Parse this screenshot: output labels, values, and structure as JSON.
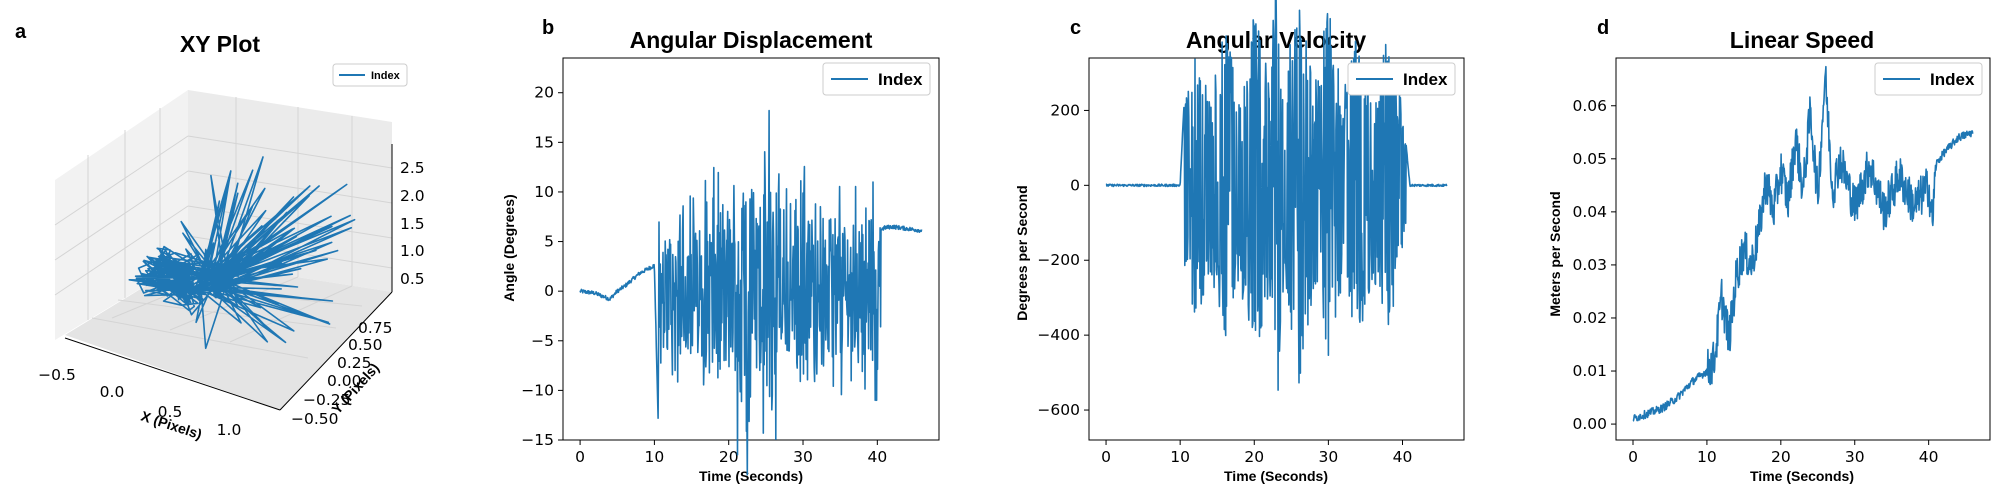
{
  "colors": {
    "series": "#1f77b4",
    "axis": "#000000",
    "pane": "#f2f2f2",
    "grid": "#d9d9d9"
  },
  "chart_data": [
    {
      "panel_label": "a",
      "type": "line",
      "projection": "3d",
      "title": "XY Plot",
      "xlabel": "X (Pixels)",
      "ylabel": "Y (Pixels)",
      "zlabel": "",
      "x_ticks": [
        "−0.5",
        "0.0",
        "0.5",
        "1.0"
      ],
      "y_ticks": [
        "−0.50",
        "−0.25",
        "0.00",
        "0.25",
        "0.50",
        "0.75"
      ],
      "z_ticks": [
        "0.5",
        "1.0",
        "1.5",
        "2.0",
        "2.5"
      ],
      "xlim": [
        -0.5,
        1.2
      ],
      "ylim": [
        -0.6,
        0.85
      ],
      "zlim": [
        0.3,
        2.7
      ],
      "legend": "top-right",
      "grid": true,
      "series": [
        {
          "name": "Index"
        }
      ]
    },
    {
      "panel_label": "b",
      "type": "line",
      "title": "Angular Displacement",
      "xlabel": "Time (Seconds)",
      "ylabel": "Angle (Degrees)",
      "xlim": [
        -2.3,
        48.3
      ],
      "ylim": [
        -15,
        23.5
      ],
      "x_ticks": [
        0,
        10,
        20,
        30,
        40
      ],
      "y_ticks": [
        -15,
        -10,
        -5,
        0,
        5,
        10,
        15,
        20
      ],
      "legend": "top-right",
      "grid": false,
      "series": [
        {
          "name": "Index",
          "x": [
            0,
            2,
            4,
            5,
            6,
            8,
            10,
            10.5,
            11,
            12,
            14,
            16,
            18,
            20,
            22,
            24,
            26,
            28,
            30,
            32,
            34,
            36,
            38,
            40,
            40.5,
            41,
            42,
            44,
            46
          ],
          "y": [
            0,
            -0.2,
            -0.8,
            0,
            0.5,
            1.8,
            2.6,
            -13,
            5,
            -8,
            10,
            -9,
            14,
            -10,
            21,
            -11,
            21,
            -9,
            13,
            -8,
            11,
            -10,
            11,
            -11,
            6.2,
            6.4,
            6.5,
            6.3,
            6.1
          ]
        }
      ]
    },
    {
      "panel_label": "c",
      "type": "line",
      "title": "Angular Velocity",
      "xlabel": "Time (Seconds)",
      "ylabel": "Degrees per Second",
      "xlim": [
        -2.3,
        48.3
      ],
      "ylim": [
        -680,
        340
      ],
      "x_ticks": [
        0,
        10,
        20,
        30,
        40
      ],
      "y_ticks": [
        -600,
        -400,
        -200,
        0,
        200
      ],
      "legend": "top-right",
      "grid": false,
      "series": [
        {
          "name": "Index",
          "x": [
            0,
            5,
            10,
            10.5,
            12,
            14,
            16,
            18,
            20,
            22,
            23,
            24,
            26,
            28,
            30,
            32,
            34,
            36,
            38,
            40,
            41,
            44,
            46
          ],
          "y": [
            0,
            0,
            0,
            210,
            -380,
            230,
            -420,
            260,
            -470,
            290,
            -640,
            270,
            -560,
            280,
            -480,
            250,
            -430,
            240,
            -400,
            210,
            0,
            0,
            0
          ]
        }
      ]
    },
    {
      "panel_label": "d",
      "type": "line",
      "title": "Linear Speed",
      "xlabel": "Time (Seconds)",
      "ylabel": "Meters per Second",
      "xlim": [
        -2.3,
        48.3
      ],
      "ylim": [
        -0.003,
        0.069
      ],
      "x_ticks": [
        0,
        10,
        20,
        30,
        40
      ],
      "y_ticks": [
        0.0,
        0.01,
        0.02,
        0.03,
        0.04,
        0.05,
        0.06
      ],
      "y_tick_labels": [
        "0.00",
        "0.01",
        "0.02",
        "0.03",
        "0.04",
        "0.05",
        "0.06"
      ],
      "legend": "top-right",
      "grid": false,
      "series": [
        {
          "name": "Index",
          "x": [
            0,
            2,
            4,
            6,
            8,
            10,
            11,
            12,
            13,
            14,
            15,
            16,
            17,
            18,
            19,
            20,
            21,
            22,
            23,
            24,
            25,
            26,
            27,
            28,
            30,
            32,
            34,
            36,
            38,
            40,
            40.5,
            41,
            42,
            44,
            46
          ],
          "y": [
            0.001,
            0.002,
            0.003,
            0.005,
            0.008,
            0.01,
            0.012,
            0.024,
            0.016,
            0.028,
            0.033,
            0.03,
            0.036,
            0.046,
            0.04,
            0.048,
            0.042,
            0.054,
            0.044,
            0.059,
            0.043,
            0.066,
            0.044,
            0.05,
            0.041,
            0.049,
            0.04,
            0.047,
            0.041,
            0.045,
            0.038,
            0.049,
            0.051,
            0.054,
            0.055
          ]
        }
      ]
    }
  ]
}
